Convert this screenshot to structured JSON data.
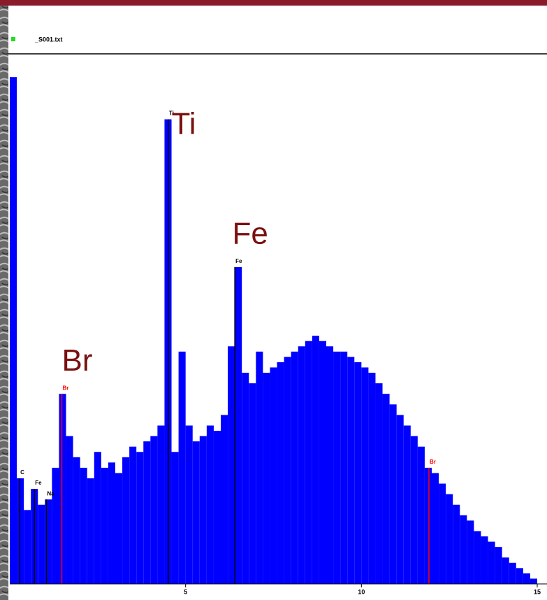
{
  "chart_data": {
    "type": "histogram",
    "title": "_S001.txt",
    "bins": [
      0,
      0.2,
      0.4,
      0.6,
      0.8,
      1,
      1.2,
      1.4,
      1.6,
      1.8,
      2,
      2.2,
      2.4,
      2.6,
      2.8,
      3,
      3.2,
      3.4,
      3.6,
      3.8,
      4,
      4.2,
      4.4,
      4.6,
      4.8,
      5,
      5.2,
      5.4,
      5.6,
      5.8,
      6,
      6.2,
      6.4,
      6.6,
      6.8,
      7,
      7.2,
      7.4,
      7.6,
      7.8,
      8,
      8.2,
      8.4,
      8.6,
      8.8,
      9,
      9.2,
      9.4,
      9.6,
      9.8,
      10,
      10.2,
      10.4,
      10.6,
      10.8,
      11,
      11.2,
      11.4,
      11.6,
      11.8,
      12,
      12.2,
      12.4,
      12.6,
      12.8,
      13,
      13.2,
      13.4,
      13.6,
      13.8,
      14,
      14.2,
      14.4,
      14.6,
      14.8,
      15
    ],
    "values": [
      96,
      20,
      14,
      18,
      15,
      16,
      22,
      36,
      28,
      24,
      22,
      20,
      25,
      22,
      23,
      21,
      24,
      26,
      25,
      27,
      28,
      30,
      88,
      25,
      44,
      30,
      27,
      28,
      30,
      29,
      32,
      45,
      60,
      40,
      38,
      44,
      40,
      41,
      42,
      43,
      44,
      45,
      46,
      47,
      46,
      45,
      44,
      44,
      43,
      42,
      41,
      40,
      38,
      36,
      34,
      32,
      30,
      28,
      26,
      22,
      21,
      19,
      17,
      15,
      13,
      12,
      10,
      9,
      8,
      7,
      5,
      4,
      3,
      2,
      1
    ],
    "color": "#0000ff",
    "xlim": [
      0,
      15
    ],
    "xticks": [
      5,
      10,
      15
    ],
    "ylim": [
      0,
      100
    ],
    "peak_labels": [
      {
        "text": "C",
        "x": 0.28,
        "color": "#000000"
      },
      {
        "text": "Fe",
        "x": 0.7,
        "color": "#000000"
      },
      {
        "text": "Na",
        "x": 1.04,
        "color": "#000000"
      },
      {
        "text": "Br",
        "x": 1.48,
        "color": "#ff0000"
      },
      {
        "text": "Ti",
        "x": 4.51,
        "color": "#000000"
      },
      {
        "text": "Fe",
        "x": 6.4,
        "color": "#000000"
      },
      {
        "text": "Br",
        "x": 11.92,
        "color": "#ff0000"
      }
    ],
    "annotations": [
      {
        "text": "Br",
        "x": 1.48
      },
      {
        "text": "Ti",
        "x": 4.51
      },
      {
        "text": "Fe",
        "x": 6.4
      }
    ],
    "annotation_color": "#7a1010"
  }
}
